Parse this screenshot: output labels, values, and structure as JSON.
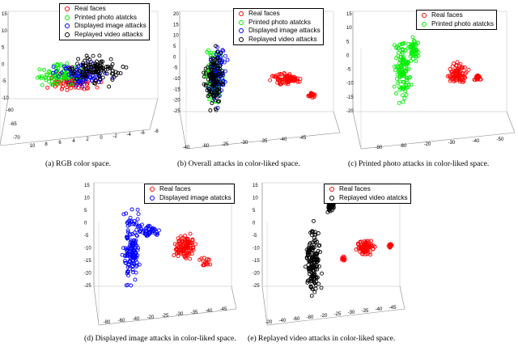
{
  "figure": {
    "classes": {
      "real": {
        "label": "Real faces",
        "color": "#ff0000"
      },
      "printed": {
        "label": "Printed photo atatcks",
        "color": "#00ee00"
      },
      "displayed": {
        "label": "Displayed image attacks",
        "color": "#0000ff"
      },
      "displayed_alt": {
        "label": "Displayed image atatcks",
        "color": "#0000ff"
      },
      "replayed": {
        "label": "Replayed video attacks",
        "color": "#000000"
      },
      "replayed_alt": {
        "label": "Replayed video atatcks",
        "color": "#000000"
      }
    }
  },
  "chart_data": [
    {
      "type": "scatter",
      "caption": "(a) RGB color space.",
      "legend": [
        "Real faces",
        "Printed photo atatcks",
        "Displayed image attacks",
        "Replayed video attacks"
      ],
      "zticks": [
        "15",
        "10",
        "5",
        "0",
        "-5",
        "-10"
      ],
      "xticks": [
        "10",
        "8",
        "6",
        "4",
        "2",
        "0",
        "-2",
        "-4",
        "-6",
        "-8"
      ],
      "yticks": [
        "-60",
        "-65",
        "-70"
      ],
      "series": [
        {
          "name": "Real faces",
          "color": "#ff0000",
          "clusters": [
            {
              "x": 3,
              "y": -65,
              "z": -4,
              "n": 80
            }
          ]
        },
        {
          "name": "Printed photo atatcks",
          "color": "#00ee00",
          "clusters": [
            {
              "x": 2,
              "y": -65,
              "z": -3,
              "n": 90
            }
          ]
        },
        {
          "name": "Displayed image attacks",
          "color": "#0000ff",
          "clusters": [
            {
              "x": 0,
              "y": -64,
              "z": -1,
              "n": 90
            }
          ]
        },
        {
          "name": "Replayed video attacks",
          "color": "#000000",
          "clusters": [
            {
              "x": -2,
              "y": -63,
              "z": 0,
              "n": 110
            }
          ]
        }
      ]
    },
    {
      "type": "scatter",
      "caption": "(b) Overall attacks in color-liked space.",
      "legend": [
        "Real faces",
        "Printed photo atatcks",
        "Displayed image attacks",
        "Replayed video attacks"
      ],
      "zticks": [
        "20",
        "15",
        "10",
        "5",
        "0",
        "-5",
        "-10",
        "-15",
        "-20",
        "-25"
      ],
      "xticks": [
        "-40",
        "-60",
        "-25",
        "-30",
        "-35",
        "-40",
        "-45"
      ],
      "series": [
        {
          "name": "Real faces",
          "color": "#ff0000",
          "clusters": [
            {
              "x": -38,
              "y": -40,
              "z": -5,
              "n": 110
            }
          ]
        },
        {
          "name": "Printed photo atatcks",
          "color": "#00ee00",
          "clusters": [
            {
              "x": -30,
              "y": -55,
              "z": 0,
              "n": 90
            }
          ]
        },
        {
          "name": "Displayed image attacks",
          "color": "#0000ff",
          "clusters": [
            {
              "x": -30,
              "y": -55,
              "z": 2,
              "n": 90
            }
          ]
        },
        {
          "name": "Replayed video attacks",
          "color": "#000000",
          "clusters": [
            {
              "x": -30,
              "y": -55,
              "z": -2,
              "n": 110
            }
          ]
        }
      ]
    },
    {
      "type": "scatter",
      "caption": "(c) Printed photo attacks in color-liked space.",
      "legend": [
        "Real faces",
        "Printed photo atatcks"
      ],
      "zticks": [
        "15",
        "10",
        "5",
        "0",
        "-5",
        "-10",
        "-15",
        "-20"
      ],
      "xticks": [
        "-80",
        "-60",
        "-20",
        "-30",
        "-40",
        "-50"
      ],
      "series": [
        {
          "name": "Real faces",
          "color": "#ff0000",
          "clusters": [
            {
              "x": -42,
              "y": -40,
              "z": -3,
              "n": 110
            }
          ]
        },
        {
          "name": "Printed photo atatcks",
          "color": "#00ee00",
          "clusters": [
            {
              "x": -28,
              "y": -60,
              "z": 0,
              "n": 170
            }
          ]
        }
      ]
    },
    {
      "type": "scatter",
      "caption": "(d) Displayed image attacks in color-liked space.",
      "legend": [
        "Real faces",
        "Displayed image atatcks"
      ],
      "zticks": [
        "15",
        "10",
        "5",
        "0",
        "-5",
        "-10",
        "-15",
        "-20",
        "-25"
      ],
      "xticks": [
        "-80",
        "-60",
        "-40",
        "-20",
        "-25",
        "-30",
        "-35",
        "-40",
        "-45"
      ],
      "series": [
        {
          "name": "Real faces",
          "color": "#ff0000",
          "clusters": [
            {
              "x": -38,
              "y": -40,
              "z": -5,
              "n": 130
            }
          ]
        },
        {
          "name": "Displayed image atatcks",
          "color": "#0000ff",
          "clusters": [
            {
              "x": -28,
              "y": -60,
              "z": 0,
              "n": 190
            }
          ]
        }
      ]
    },
    {
      "type": "scatter",
      "caption": "(e) Replayed video attacks in color-liked space.",
      "legend": [
        "Real faces",
        "Replayed video atatcks"
      ],
      "zticks": [
        "15",
        "10",
        "5",
        "0",
        "-5",
        "-10",
        "-15",
        "-20",
        "-25"
      ],
      "xticks": [
        "-20",
        "-40",
        "-60",
        "-80",
        "-20",
        "-25",
        "-30",
        "-35",
        "-40",
        "-45"
      ],
      "series": [
        {
          "name": "Real faces",
          "color": "#ff0000",
          "clusters": [
            {
              "x": -38,
              "y": -40,
              "z": -5,
              "n": 110
            }
          ]
        },
        {
          "name": "Replayed video atatcks",
          "color": "#000000",
          "clusters": [
            {
              "x": -28,
              "y": -60,
              "z": 0,
              "n": 200
            }
          ]
        }
      ]
    }
  ]
}
